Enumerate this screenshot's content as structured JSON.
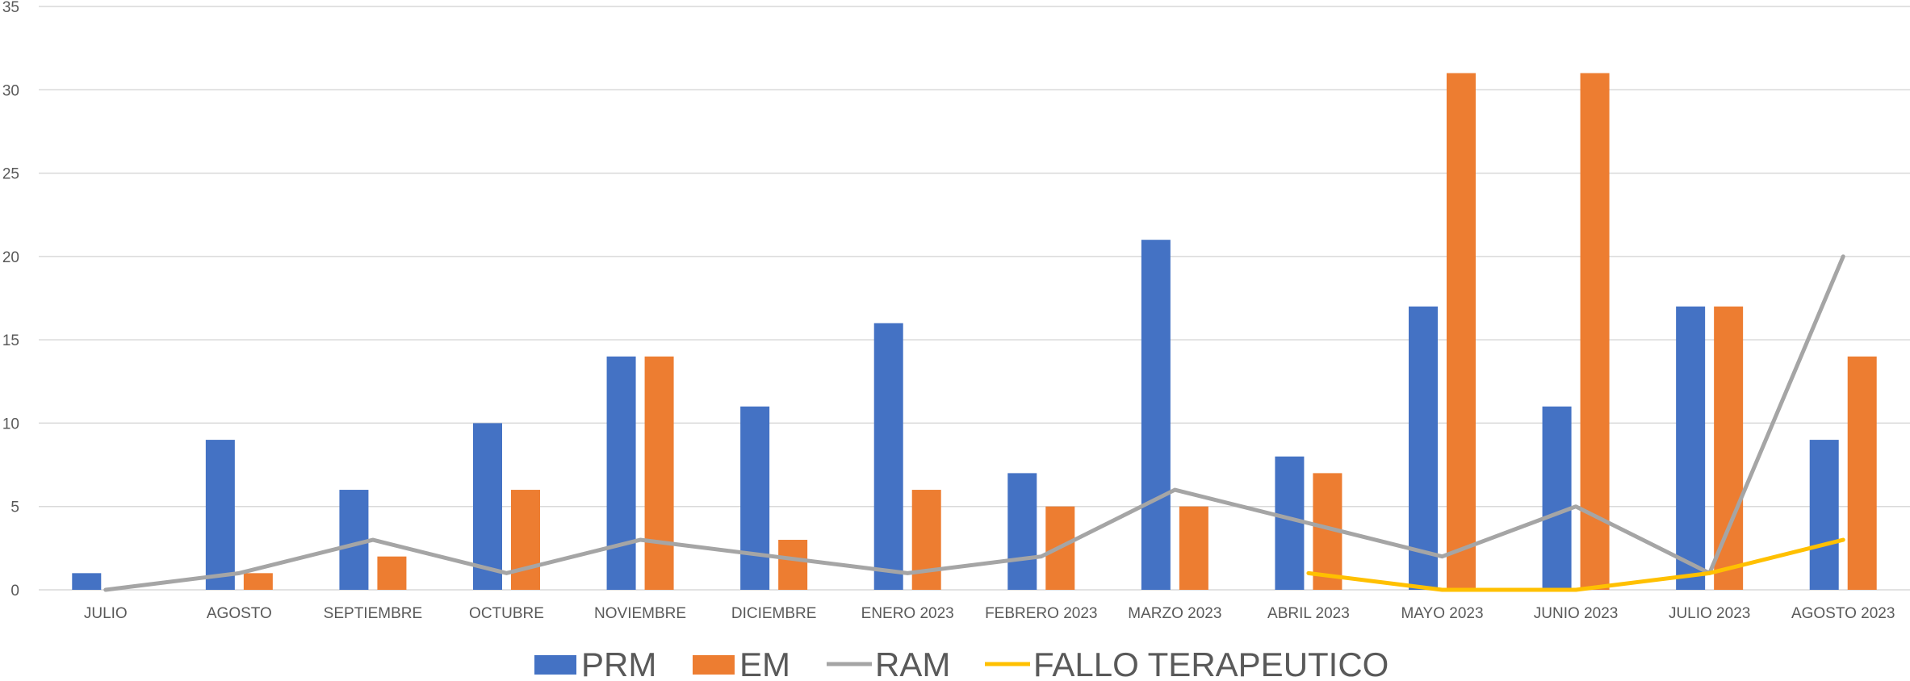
{
  "chart_data": {
    "type": "bar",
    "categories": [
      "JULIO",
      "AGOSTO",
      "SEPTIEMBRE",
      "OCTUBRE",
      "NOVIEMBRE",
      "DICIEMBRE",
      "ENERO 2023",
      "FEBRERO 2023",
      "MARZO 2023",
      "ABRIL 2023",
      "MAYO 2023",
      "JUNIO 2023",
      "JULIO 2023",
      "AGOSTO 2023"
    ],
    "ylim": [
      0,
      35
    ],
    "yticks": [
      0,
      5,
      10,
      15,
      20,
      25,
      30,
      35
    ],
    "grid": true,
    "legend_position": "bottom",
    "series": [
      {
        "name": "PRM",
        "kind": "bar",
        "color": "#4472C4",
        "values": [
          1,
          9,
          6,
          10,
          14,
          11,
          16,
          7,
          21,
          8,
          17,
          11,
          17,
          9
        ]
      },
      {
        "name": "EM",
        "kind": "bar",
        "color": "#ED7D31",
        "values": [
          0,
          1,
          2,
          6,
          14,
          3,
          6,
          5,
          5,
          7,
          31,
          31,
          17,
          14
        ]
      },
      {
        "name": "RAM",
        "kind": "line",
        "color": "#A5A5A5",
        "values": [
          0,
          1,
          3,
          1,
          3,
          2,
          1,
          2,
          6,
          4,
          2,
          5,
          1,
          20
        ]
      },
      {
        "name": "FALLO TERAPEUTICO",
        "kind": "line",
        "color": "#FFC000",
        "values": [
          null,
          null,
          null,
          null,
          null,
          null,
          null,
          null,
          null,
          1,
          0,
          0,
          1,
          3
        ]
      }
    ]
  }
}
